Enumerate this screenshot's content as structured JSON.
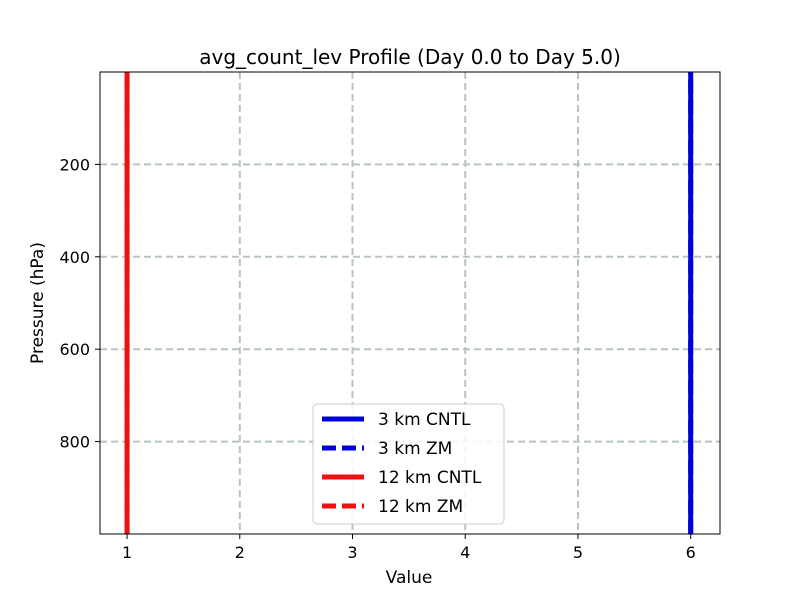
{
  "chart_data": {
    "type": "line",
    "title": "avg_count_lev Profile (Day 0.0 to Day 5.0)",
    "xlabel": "Value",
    "ylabel": "Pressure (hPa)",
    "xlim": [
      0.76,
      6.26
    ],
    "ylim": [
      1000,
      0
    ],
    "y_inverted": true,
    "xticks": [
      1,
      2,
      3,
      4,
      5,
      6
    ],
    "yticks": [
      200,
      400,
      600,
      800
    ],
    "grid": true,
    "legend_position": "lower-center",
    "series": [
      {
        "name": "3 km CNTL",
        "color": "#0000dd",
        "style": "solid",
        "x": [
          6,
          6
        ],
        "y": [
          1000,
          0
        ]
      },
      {
        "name": "3 km ZM",
        "color": "#0000dd",
        "style": "dashed",
        "x": [
          6,
          6
        ],
        "y": [
          1000,
          0
        ]
      },
      {
        "name": "12 km CNTL",
        "color": "#ee1111",
        "style": "solid",
        "x": [
          1,
          1
        ],
        "y": [
          1000,
          0
        ]
      },
      {
        "name": "12 km ZM",
        "color": "#ee1111",
        "style": "dashed",
        "x": [
          1,
          1
        ],
        "y": [
          1000,
          0
        ]
      }
    ]
  }
}
